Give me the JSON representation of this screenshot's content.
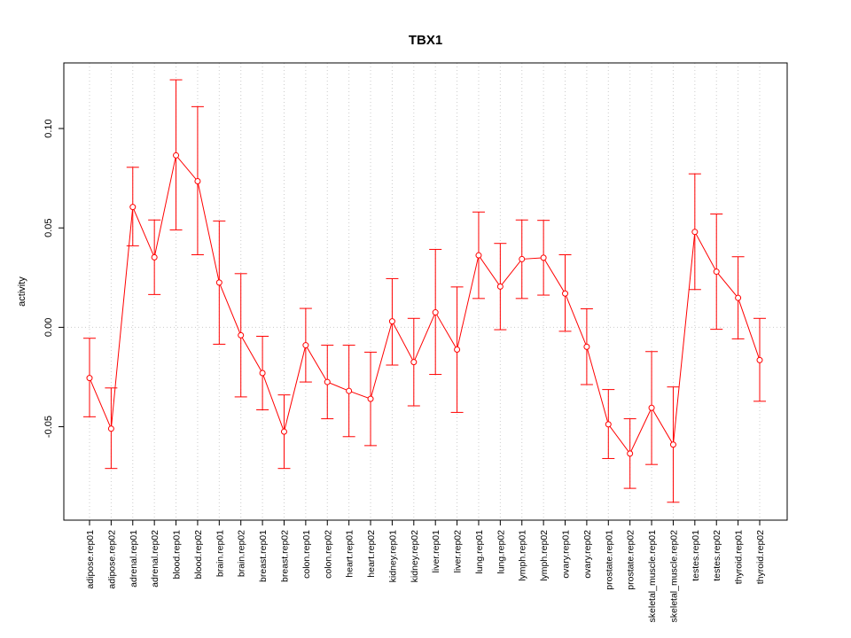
{
  "chart_data": {
    "type": "line",
    "title": "TBX1",
    "ylabel": "activity",
    "xlabel": "",
    "ylim": [
      -0.097,
      0.133
    ],
    "yticks": [
      -0.05,
      0.0,
      0.05,
      0.1
    ],
    "ytick_labels": [
      "-0.05",
      "0.00",
      "0.05",
      "0.10"
    ],
    "grid": true,
    "color": "#ff0000",
    "grid_color": "#cccccc",
    "categories": [
      "adipose.rep01",
      "adipose.rep02",
      "adrenal.rep01",
      "adrenal.rep02",
      "blood.rep01",
      "blood.rep02",
      "brain.rep01",
      "brain.rep02",
      "breast.rep01",
      "breast.rep02",
      "colon.rep01",
      "colon.rep02",
      "heart.rep01",
      "heart.rep02",
      "kidney.rep01",
      "kidney.rep02",
      "liver.rep01",
      "liver.rep02",
      "lung.rep01",
      "lung.rep02",
      "lymph.rep01",
      "lymph.rep02",
      "ovary.rep01",
      "ovary.rep02",
      "prostate.rep01",
      "prostate.rep02",
      "skeletal_muscle.rep01",
      "skeletal_muscle.rep02",
      "testes.rep01",
      "testes.rep02",
      "thyroid.rep01",
      "thyroid.rep02"
    ],
    "values": [
      -0.0255,
      -0.051,
      0.0605,
      0.0352,
      0.0865,
      0.0735,
      0.0225,
      -0.004,
      -0.023,
      -0.0525,
      -0.009,
      -0.0275,
      -0.032,
      -0.036,
      0.003,
      -0.0175,
      0.0075,
      -0.0112,
      0.0362,
      0.0205,
      0.0343,
      0.035,
      0.017,
      -0.0098,
      -0.0488,
      -0.0635,
      -0.0405,
      -0.059,
      0.048,
      0.028,
      0.0148,
      -0.0165
    ],
    "upper": [
      -0.0055,
      -0.0305,
      0.0805,
      0.054,
      0.1245,
      0.111,
      0.0535,
      0.027,
      -0.0045,
      -0.034,
      0.0095,
      -0.009,
      -0.009,
      -0.0125,
      0.0245,
      0.0045,
      0.0392,
      0.0203,
      0.058,
      0.0422,
      0.054,
      0.0538,
      0.0365,
      0.0093,
      -0.0313,
      -0.046,
      -0.0122,
      -0.03,
      0.0772,
      0.057,
      0.0355,
      0.0045
    ],
    "lower": [
      -0.045,
      -0.071,
      0.041,
      0.0165,
      0.049,
      0.0365,
      -0.0085,
      -0.035,
      -0.0415,
      -0.071,
      -0.0275,
      -0.046,
      -0.055,
      -0.0595,
      -0.019,
      -0.0395,
      -0.0237,
      -0.0428,
      0.0145,
      -0.0012,
      0.0145,
      0.0162,
      -0.002,
      -0.0288,
      -0.066,
      -0.081,
      -0.069,
      -0.088,
      0.019,
      -0.001,
      -0.0058,
      -0.0372
    ]
  }
}
